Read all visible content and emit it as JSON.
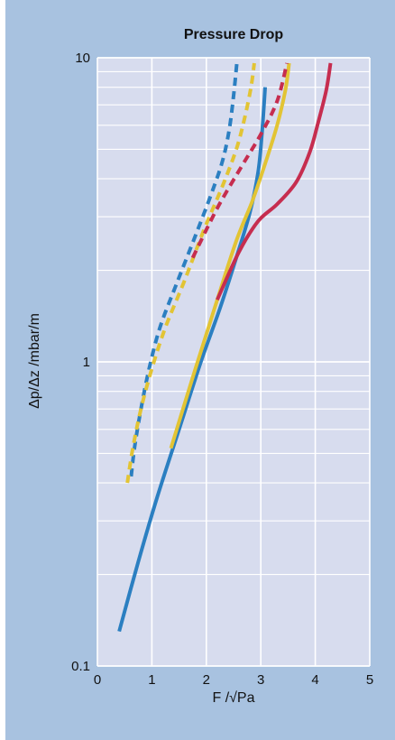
{
  "chart_data": {
    "type": "line",
    "title": "Pressure Drop",
    "xlabel": "F /√Pa",
    "ylabel": "Δp/Δz /mbar/m",
    "xlim": [
      0,
      5
    ],
    "ylim": [
      0.1,
      10
    ],
    "yscale": "log",
    "x_ticks": [
      "0",
      "1",
      "2",
      "3",
      "4",
      "5"
    ],
    "y_ticks": [
      "0.1",
      "1",
      "10"
    ],
    "grid": true,
    "series": [
      {
        "color": "#2b7fc1",
        "style": "solid",
        "x": [
          0.4,
          0.75,
          1.1,
          1.5,
          1.9,
          2.25,
          2.55,
          2.8,
          2.95,
          3.02,
          3.08
        ],
        "y": [
          0.13,
          0.22,
          0.36,
          0.6,
          1.0,
          1.5,
          2.2,
          3.1,
          4.2,
          5.6,
          8.0
        ]
      },
      {
        "color": "#e2c434",
        "style": "solid",
        "x": [
          1.35,
          1.8,
          2.2,
          2.55,
          2.85,
          3.1,
          3.3,
          3.45,
          3.52
        ],
        "y": [
          0.52,
          0.95,
          1.6,
          2.5,
          3.4,
          4.6,
          6.0,
          7.8,
          9.6
        ]
      },
      {
        "color": "#c62d4f",
        "style": "solid",
        "x": [
          2.2,
          2.6,
          2.95,
          3.3,
          3.65,
          3.9,
          4.05,
          4.2,
          4.28
        ],
        "y": [
          1.6,
          2.3,
          2.9,
          3.3,
          3.9,
          4.9,
          6.1,
          7.8,
          9.6
        ]
      },
      {
        "color": "#2b7fc1",
        "style": "dashed",
        "x": [
          0.62,
          0.68,
          0.8,
          0.95,
          1.15,
          1.45,
          1.8,
          2.1,
          2.3,
          2.42,
          2.5,
          2.56
        ],
        "y": [
          0.42,
          0.52,
          0.7,
          0.95,
          1.3,
          1.8,
          2.6,
          3.6,
          4.6,
          5.8,
          7.5,
          9.6
        ]
      },
      {
        "color": "#e2c434",
        "style": "dashed",
        "x": [
          0.55,
          0.65,
          0.8,
          1.0,
          1.25,
          1.6,
          1.95,
          2.3,
          2.55,
          2.7,
          2.82,
          2.88
        ],
        "y": [
          0.4,
          0.52,
          0.7,
          0.95,
          1.3,
          1.85,
          2.7,
          3.8,
          5.0,
          6.3,
          8.0,
          9.6
        ]
      },
      {
        "color": "#c62d4f",
        "style": "dashed",
        "x": [
          1.75,
          2.2,
          2.65,
          3.0,
          3.3,
          3.48
        ],
        "y": [
          2.2,
          3.2,
          4.4,
          5.6,
          7.2,
          9.6
        ]
      }
    ]
  }
}
